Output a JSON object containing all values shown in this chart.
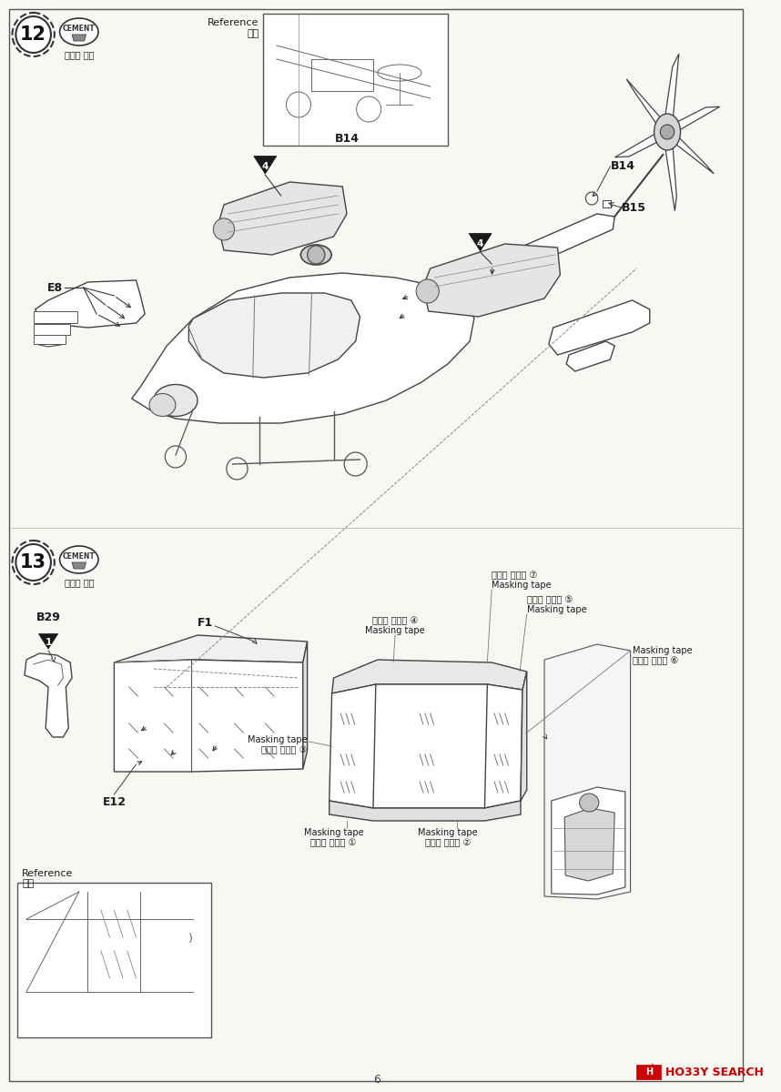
{
  "page_bg": "#f7f7f4",
  "border_color": "#2a2a2a",
  "line_color": "#3a3a3a",
  "text_color": "#1a1a1a",
  "light_line": "#888888",
  "very_light": "#bbbbbb",
  "step12_num": "12",
  "step13_num": "13",
  "cement_text": "CEMENT",
  "adhesive_kr": "접착제 사용",
  "ref_text": "Reference",
  "ref_kr": "참고",
  "page_num": "6",
  "label_e8": "E8",
  "label_b14": "B14",
  "label_b15": "B15",
  "label_b29": "B29",
  "label_f1": "F1",
  "label_e12": "E12",
  "hobby_text": "HO33Y SEARCH",
  "hobby_color": "#cc0000",
  "mt1": "Masking tape",
  "mt1k": "마스킹 테이프 ①",
  "mt2": "Masking tape",
  "mt2k": "마스킹 테이프 ②",
  "mt3": "Masking tape",
  "mt3k": "마스킹 테이프 ③",
  "mt4": "Masking tape",
  "mt4k": "마스킹 테이프 ④",
  "mt5": "Masking tape",
  "mt5k": "마스킹 테이프 ⑤",
  "mt6": "Masking tape",
  "mt6k": "마스킹 테이프 ⑥",
  "mt7": "Masking tape",
  "mt7k": "마스킹 테이프 ⑦"
}
